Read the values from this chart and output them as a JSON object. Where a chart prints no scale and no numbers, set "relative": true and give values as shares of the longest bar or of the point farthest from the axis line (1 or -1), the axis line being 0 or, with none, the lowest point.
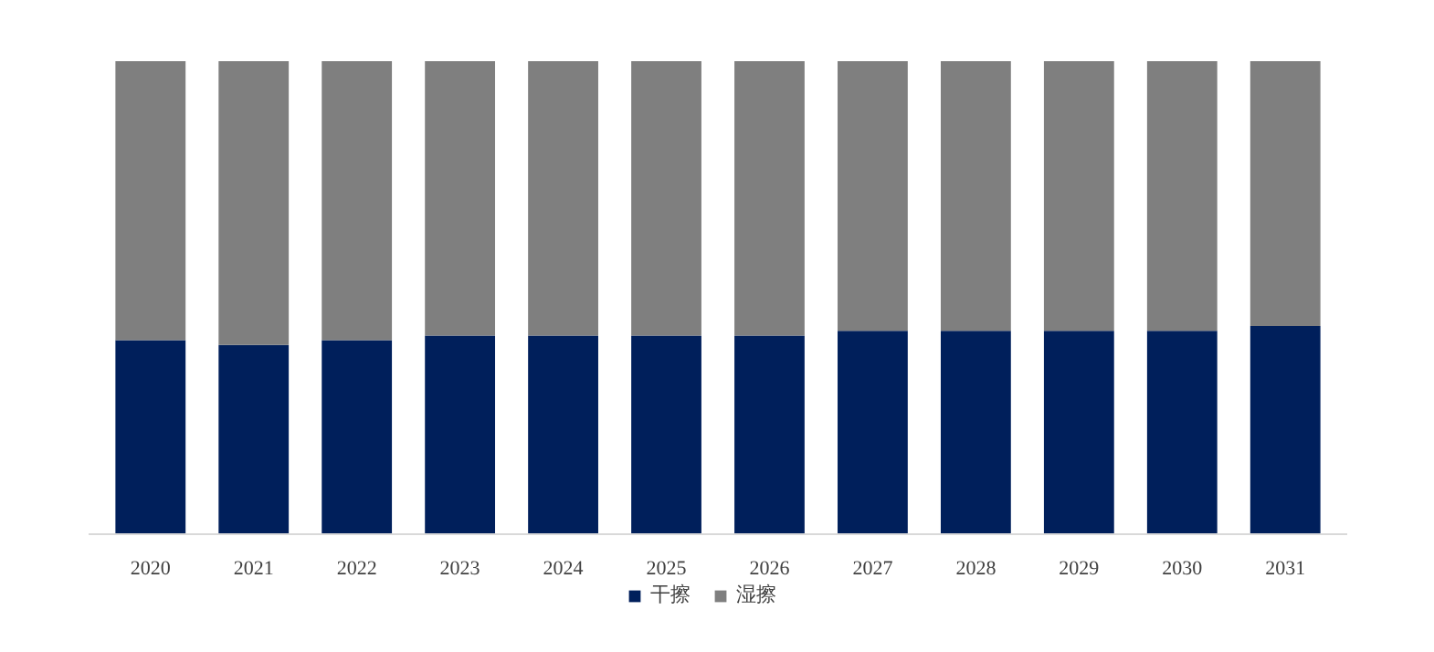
{
  "chart_data": {
    "type": "bar",
    "stacked": true,
    "relative": true,
    "legend": "bottom",
    "categories": [
      "2020",
      "2021",
      "2022",
      "2023",
      "2024",
      "2025",
      "2026",
      "2027",
      "2028",
      "2029",
      "2030",
      "2031"
    ],
    "series": [
      {
        "name": "干擦",
        "color": "#001f5b",
        "values": [
          0.41,
          0.4,
          0.41,
          0.42,
          0.42,
          0.42,
          0.42,
          0.43,
          0.43,
          0.43,
          0.43,
          0.44
        ]
      },
      {
        "name": "湿擦",
        "color": "#7f7f7f",
        "values": [
          0.59,
          0.6,
          0.59,
          0.58,
          0.58,
          0.58,
          0.58,
          0.57,
          0.57,
          0.57,
          0.57,
          0.56
        ]
      }
    ]
  }
}
